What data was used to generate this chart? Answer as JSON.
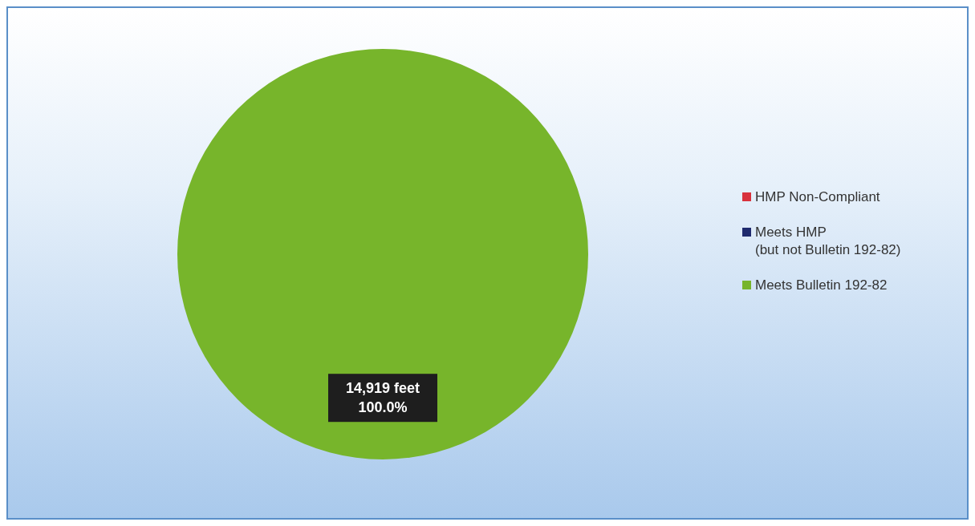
{
  "chart_data": {
    "type": "pie",
    "categories": [
      "HMP Non-Compliant",
      "Meets HMP\n(but not Bulletin 192-82)",
      "Meets Bulletin 192-82"
    ],
    "values": [
      0,
      0,
      14919
    ],
    "colors": [
      "#d8323c",
      "#1f2a6e",
      "#77b52b"
    ],
    "value_labels": [
      null,
      null,
      "14,919 feet\n100.0%"
    ],
    "legend": "right"
  }
}
